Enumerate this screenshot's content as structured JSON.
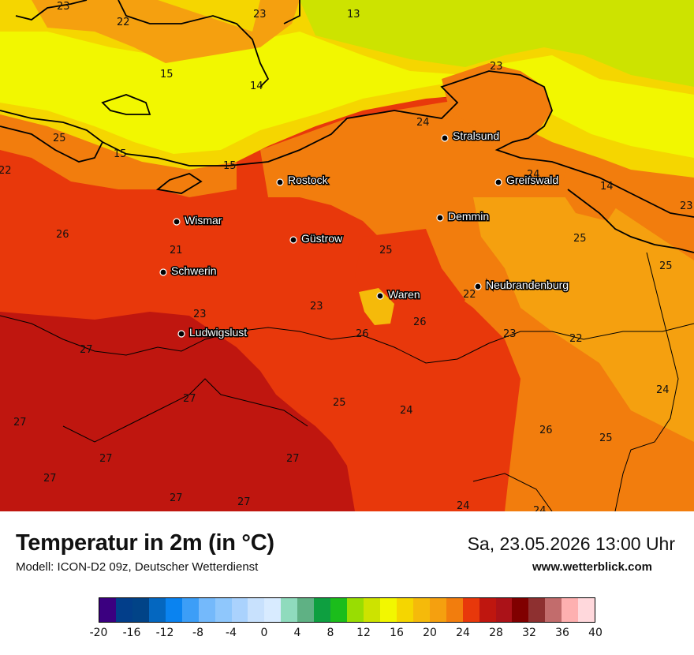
{
  "map": {
    "cities": [
      {
        "name": "Stralsund"
      },
      {
        "name": "Rostock"
      },
      {
        "name": "Greifswald"
      },
      {
        "name": "Wismar"
      },
      {
        "name": "Demmin"
      },
      {
        "name": "Güstrow"
      },
      {
        "name": "Schwerin"
      },
      {
        "name": "Waren"
      },
      {
        "name": "Neubrandenburg"
      },
      {
        "name": "Ludwigslust"
      }
    ],
    "value_labels": [
      "23",
      "22",
      "23",
      "13",
      "15",
      "14",
      "23",
      "25",
      "15",
      "24",
      "15",
      "22",
      "24",
      "14",
      "23",
      "26",
      "25",
      "21",
      "25",
      "23",
      "22",
      "25",
      "26",
      "23",
      "27",
      "27",
      "24",
      "26",
      "25",
      "27",
      "26",
      "23",
      "22",
      "24",
      "25",
      "27",
      "27",
      "27",
      "27",
      "27",
      "24",
      "24"
    ]
  },
  "footer": {
    "title": "Temperatur in 2m (in °C)",
    "subtitle": "Modell: ICON-D2 09z, Deutscher Wetterdienst",
    "datetime": "Sa, 23.05.2026 13:00 Uhr",
    "website": "www.wetterblick.com"
  },
  "legend": {
    "colors": [
      "#3b0080",
      "#023e8a",
      "#014387",
      "#0467c0",
      "#0a83f0",
      "#3c9ef7",
      "#74b9fb",
      "#8fc7fc",
      "#aad2fd",
      "#c8e1fd",
      "#d8ebff",
      "#8fdbbd",
      "#5fb184",
      "#0e9f40",
      "#1bbd1b",
      "#99dd02",
      "#cde300",
      "#f2f700",
      "#f5d600",
      "#f5ba0a",
      "#f5a00f",
      "#f27d0d",
      "#e8380b",
      "#bf160f",
      "#ab1218",
      "#800000",
      "#8e3030",
      "#c26c6c",
      "#feb0b0",
      "#ffd8dc"
    ],
    "ticks": [
      "-20",
      "-16",
      "-12",
      "-8",
      "-4",
      "0",
      "4",
      "8",
      "12",
      "16",
      "20",
      "24",
      "28",
      "32",
      "36",
      "40"
    ]
  }
}
